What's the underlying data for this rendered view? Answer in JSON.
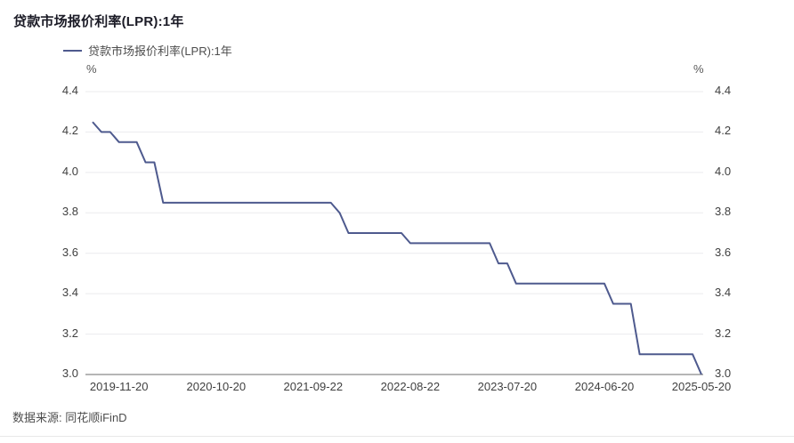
{
  "page": {
    "title": "贷款市场报价利率(LPR):1年",
    "source_note": "数据来源: 同花顺iFinD"
  },
  "legend": {
    "label": "贷款市场报价利率(LPR):1年"
  },
  "axes": {
    "unit_left": "%",
    "unit_right": "%"
  },
  "colors": {
    "line": "#4e5a8e",
    "grid": "#ebebee",
    "axis": "#6e6e6e"
  },
  "chart_data": {
    "type": "line",
    "title": "贷款市场报价利率(LPR):1年",
    "series_name": "贷款市场报价利率(LPR):1年",
    "unit": "%",
    "ylim": [
      3.0,
      4.4
    ],
    "y_ticks": [
      4.4,
      4.2,
      4.0,
      3.8,
      3.6,
      3.4,
      3.2,
      3.0
    ],
    "grid": true,
    "legend_position": "top-left",
    "x": [
      "2019-08",
      "2019-09",
      "2019-10",
      "2019-11",
      "2019-12",
      "2020-01",
      "2020-02",
      "2020-03",
      "2020-04",
      "2020-05",
      "2020-06",
      "2020-07",
      "2020-08",
      "2020-09",
      "2020-10",
      "2020-11",
      "2020-12",
      "2021-01",
      "2021-02",
      "2021-03",
      "2021-04",
      "2021-05",
      "2021-06",
      "2021-07",
      "2021-08",
      "2021-09",
      "2021-10",
      "2021-11",
      "2021-12",
      "2022-01",
      "2022-02",
      "2022-03",
      "2022-04",
      "2022-05",
      "2022-06",
      "2022-07",
      "2022-08",
      "2022-09",
      "2022-10",
      "2022-11",
      "2022-12",
      "2023-01",
      "2023-02",
      "2023-03",
      "2023-04",
      "2023-05",
      "2023-06",
      "2023-07",
      "2023-08",
      "2023-09",
      "2023-10",
      "2023-11",
      "2023-12",
      "2024-01",
      "2024-02",
      "2024-03",
      "2024-04",
      "2024-05",
      "2024-06",
      "2024-07",
      "2024-08",
      "2024-09",
      "2024-10",
      "2024-11",
      "2024-12",
      "2025-01",
      "2025-02",
      "2025-03",
      "2025-04",
      "2025-05"
    ],
    "values": [
      4.25,
      4.2,
      4.2,
      4.15,
      4.15,
      4.15,
      4.05,
      4.05,
      3.85,
      3.85,
      3.85,
      3.85,
      3.85,
      3.85,
      3.85,
      3.85,
      3.85,
      3.85,
      3.85,
      3.85,
      3.85,
      3.85,
      3.85,
      3.85,
      3.85,
      3.85,
      3.85,
      3.85,
      3.8,
      3.7,
      3.7,
      3.7,
      3.7,
      3.7,
      3.7,
      3.7,
      3.65,
      3.65,
      3.65,
      3.65,
      3.65,
      3.65,
      3.65,
      3.65,
      3.65,
      3.65,
      3.55,
      3.55,
      3.45,
      3.45,
      3.45,
      3.45,
      3.45,
      3.45,
      3.45,
      3.45,
      3.45,
      3.45,
      3.45,
      3.35,
      3.35,
      3.35,
      3.1,
      3.1,
      3.1,
      3.1,
      3.1,
      3.1,
      3.1,
      3.0
    ],
    "x_tick_labels": [
      "2019-11-20",
      "2020-10-20",
      "2021-09-22",
      "2022-08-22",
      "2023-07-20",
      "2024-06-20",
      "2025-05-20"
    ],
    "x_tick_indices": [
      3,
      14,
      25,
      36,
      47,
      58,
      69
    ]
  }
}
